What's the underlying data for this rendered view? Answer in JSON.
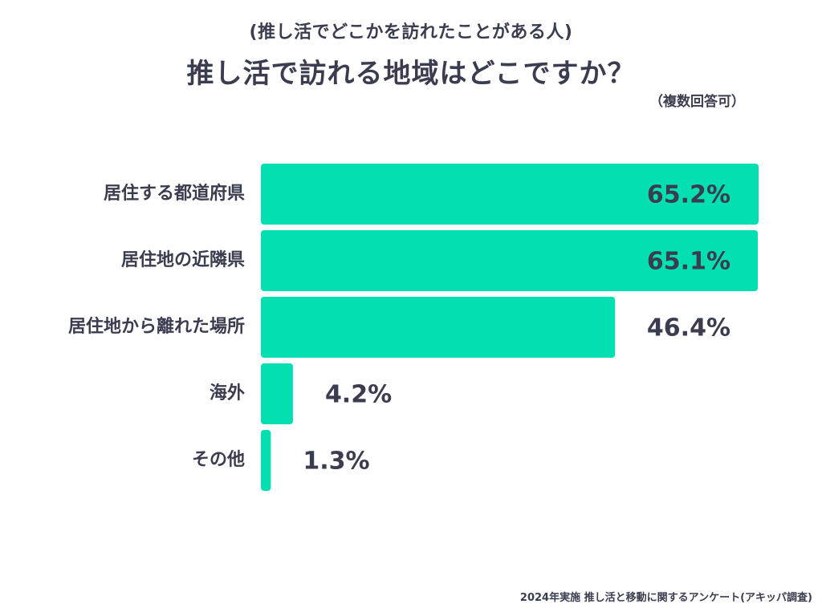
{
  "header": {
    "subtitle": "(推し活でどこかを訪れたことがある人)",
    "title": "推し活で訪れる地域はどこですか？",
    "note": "（複数回答可）"
  },
  "footer": {
    "source": "2024年実施 推し活と移動に関するアンケート(アキッパ調査)"
  },
  "colors": {
    "bar": "#04dfb1",
    "text": "#3a3d4f"
  },
  "chart_data": {
    "type": "bar",
    "orientation": "horizontal",
    "title": "推し活で訪れる地域はどこですか？",
    "categories": [
      "居住する都道府県",
      "居住地の近隣県",
      "居住地から離れた場所",
      "海外",
      "その他"
    ],
    "values": [
      65.2,
      65.1,
      46.4,
      4.2,
      1.3
    ],
    "value_labels": [
      "65.2%",
      "65.1%",
      "46.4%",
      "4.2%",
      "1.3%"
    ],
    "xlim": [
      0,
      65.2
    ],
    "xlabel": "",
    "ylabel": "",
    "grid": false
  }
}
